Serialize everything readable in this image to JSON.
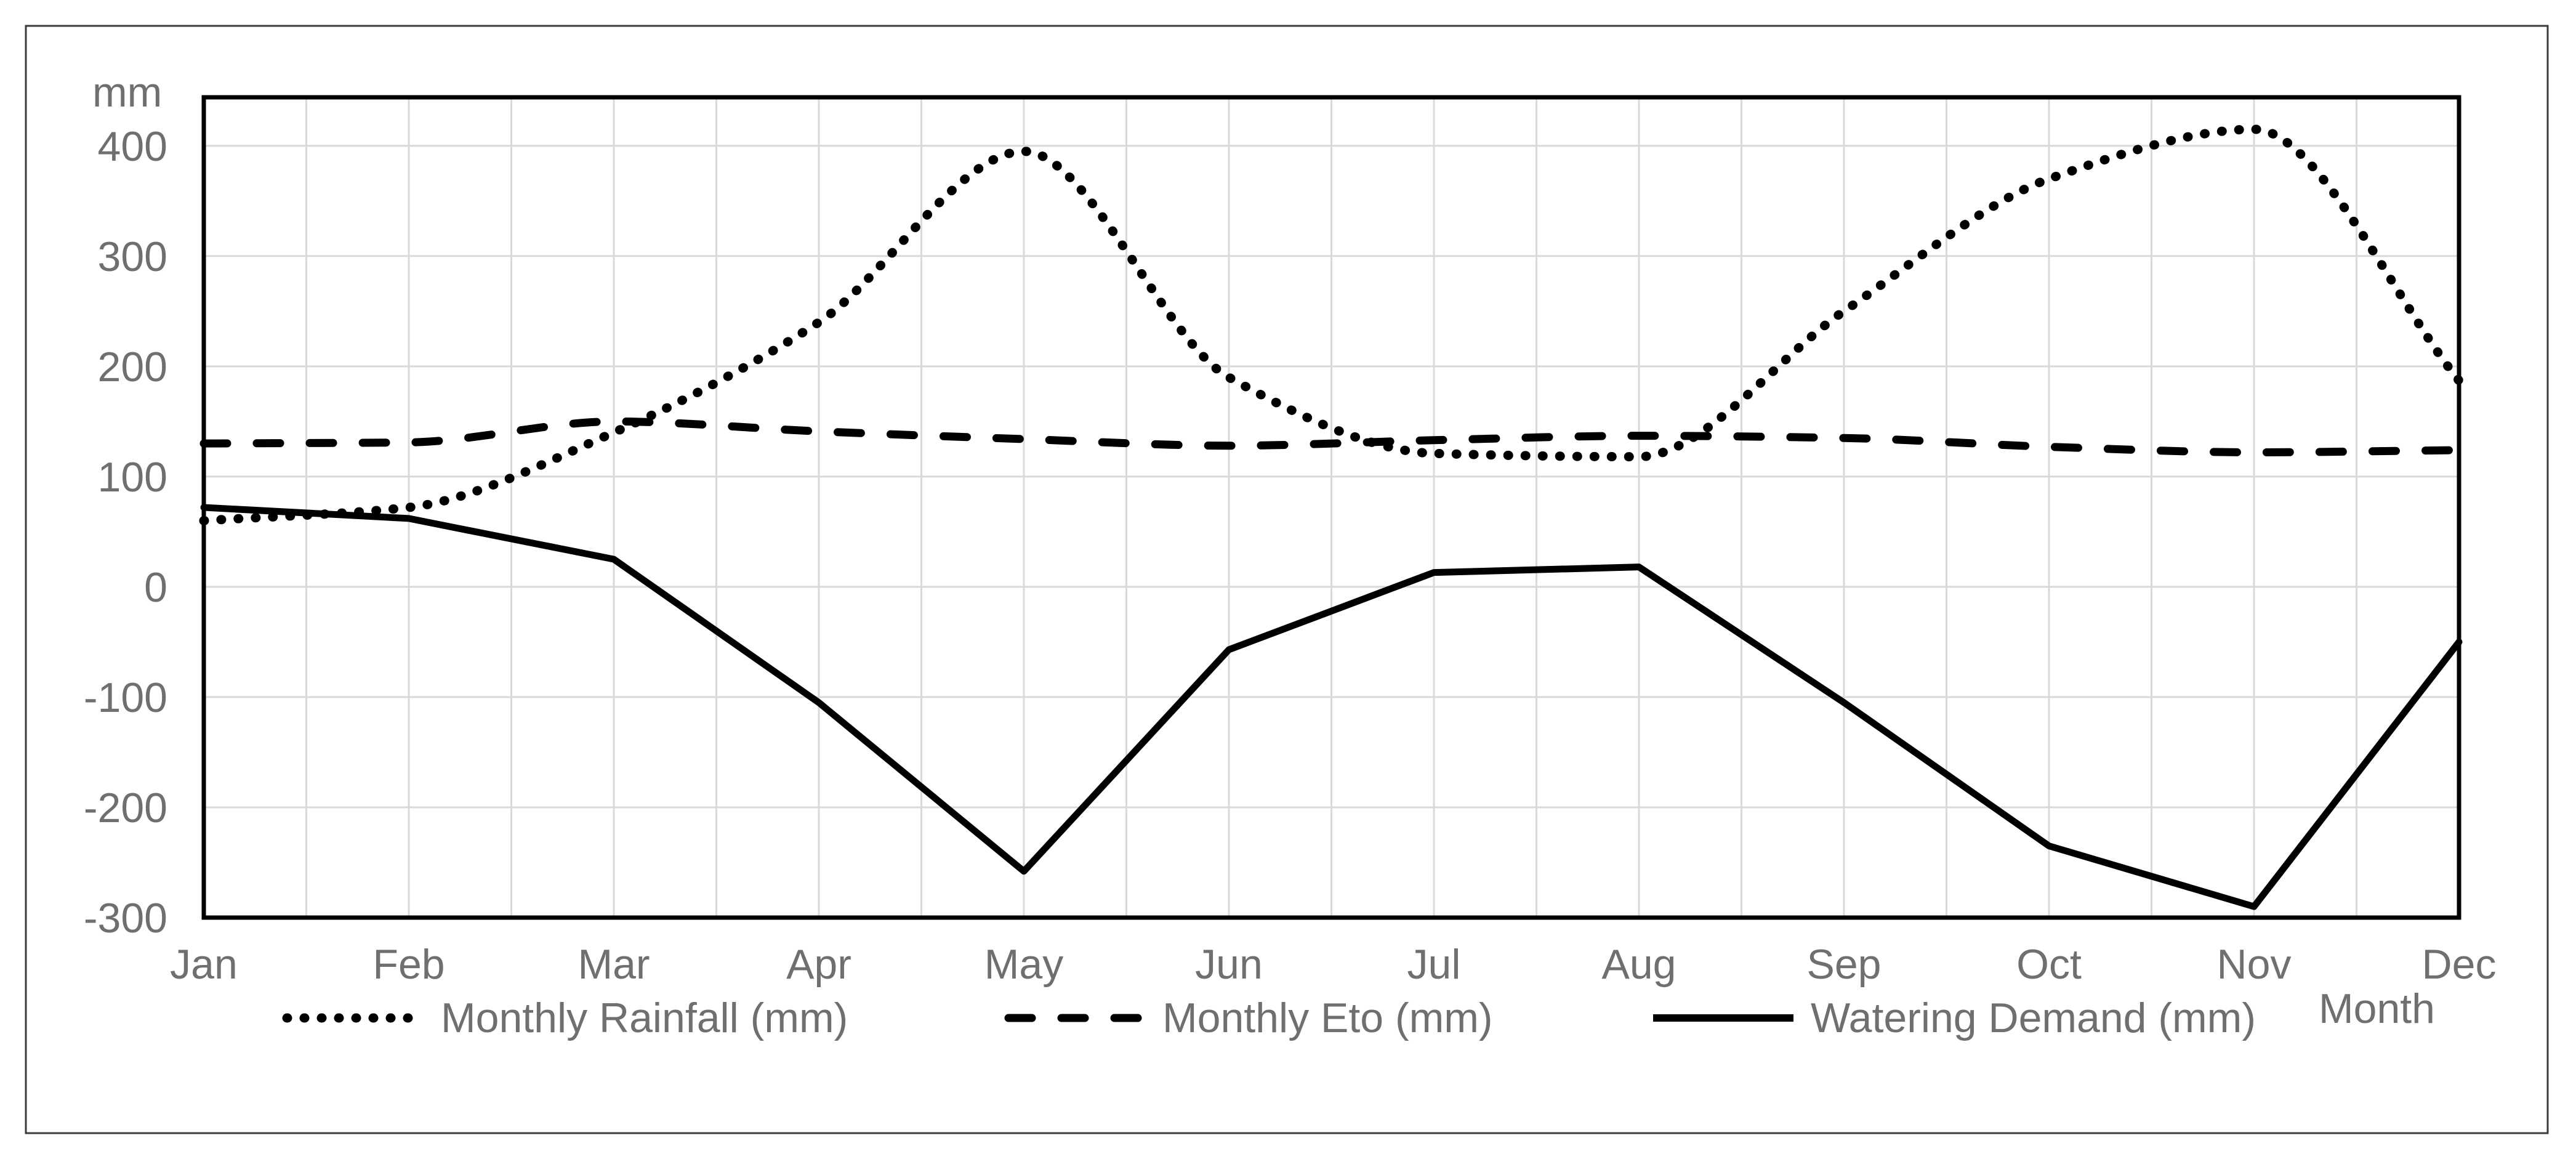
{
  "chart_data": {
    "type": "line",
    "title": "",
    "ylabel": "mm",
    "xlabel": "Month",
    "categories": [
      "Jan",
      "Feb",
      "Mar",
      "Apr",
      "May",
      "Jun",
      "Jul",
      "Aug",
      "Sep",
      "Oct",
      "Nov",
      "Dec"
    ],
    "series": [
      {
        "name": "Monthly Rainfall (mm)",
        "style": "dotted",
        "smooth": true,
        "values": [
          60,
          72,
          140,
          240,
          395,
          190,
          121,
          118,
          250,
          370,
          415,
          187
        ]
      },
      {
        "name": "Monthly Eto (mm)",
        "style": "dashed",
        "smooth": true,
        "values": [
          130,
          131,
          150,
          141,
          134,
          128,
          133,
          137,
          135,
          127,
          122,
          124
        ]
      },
      {
        "name": "Watering Demand (mm)",
        "style": "solid",
        "smooth": false,
        "values": [
          72,
          62,
          25,
          -105,
          -258,
          -57,
          13,
          18,
          -105,
          -235,
          -290,
          -50
        ]
      }
    ],
    "ylim": [
      -300,
      444
    ],
    "yticks": [
      400,
      300,
      200,
      100,
      0,
      -100,
      -200,
      -300
    ],
    "x_gridlines_per_interval": 2,
    "grid": true,
    "legend_position": "bottom",
    "colors": {
      "series": "#000000",
      "grid": "#d9d9d9",
      "text": "#6f6f6f",
      "plot_border": "#000000",
      "outer_border": "#3a3a3a",
      "background": "#ffffff"
    }
  }
}
